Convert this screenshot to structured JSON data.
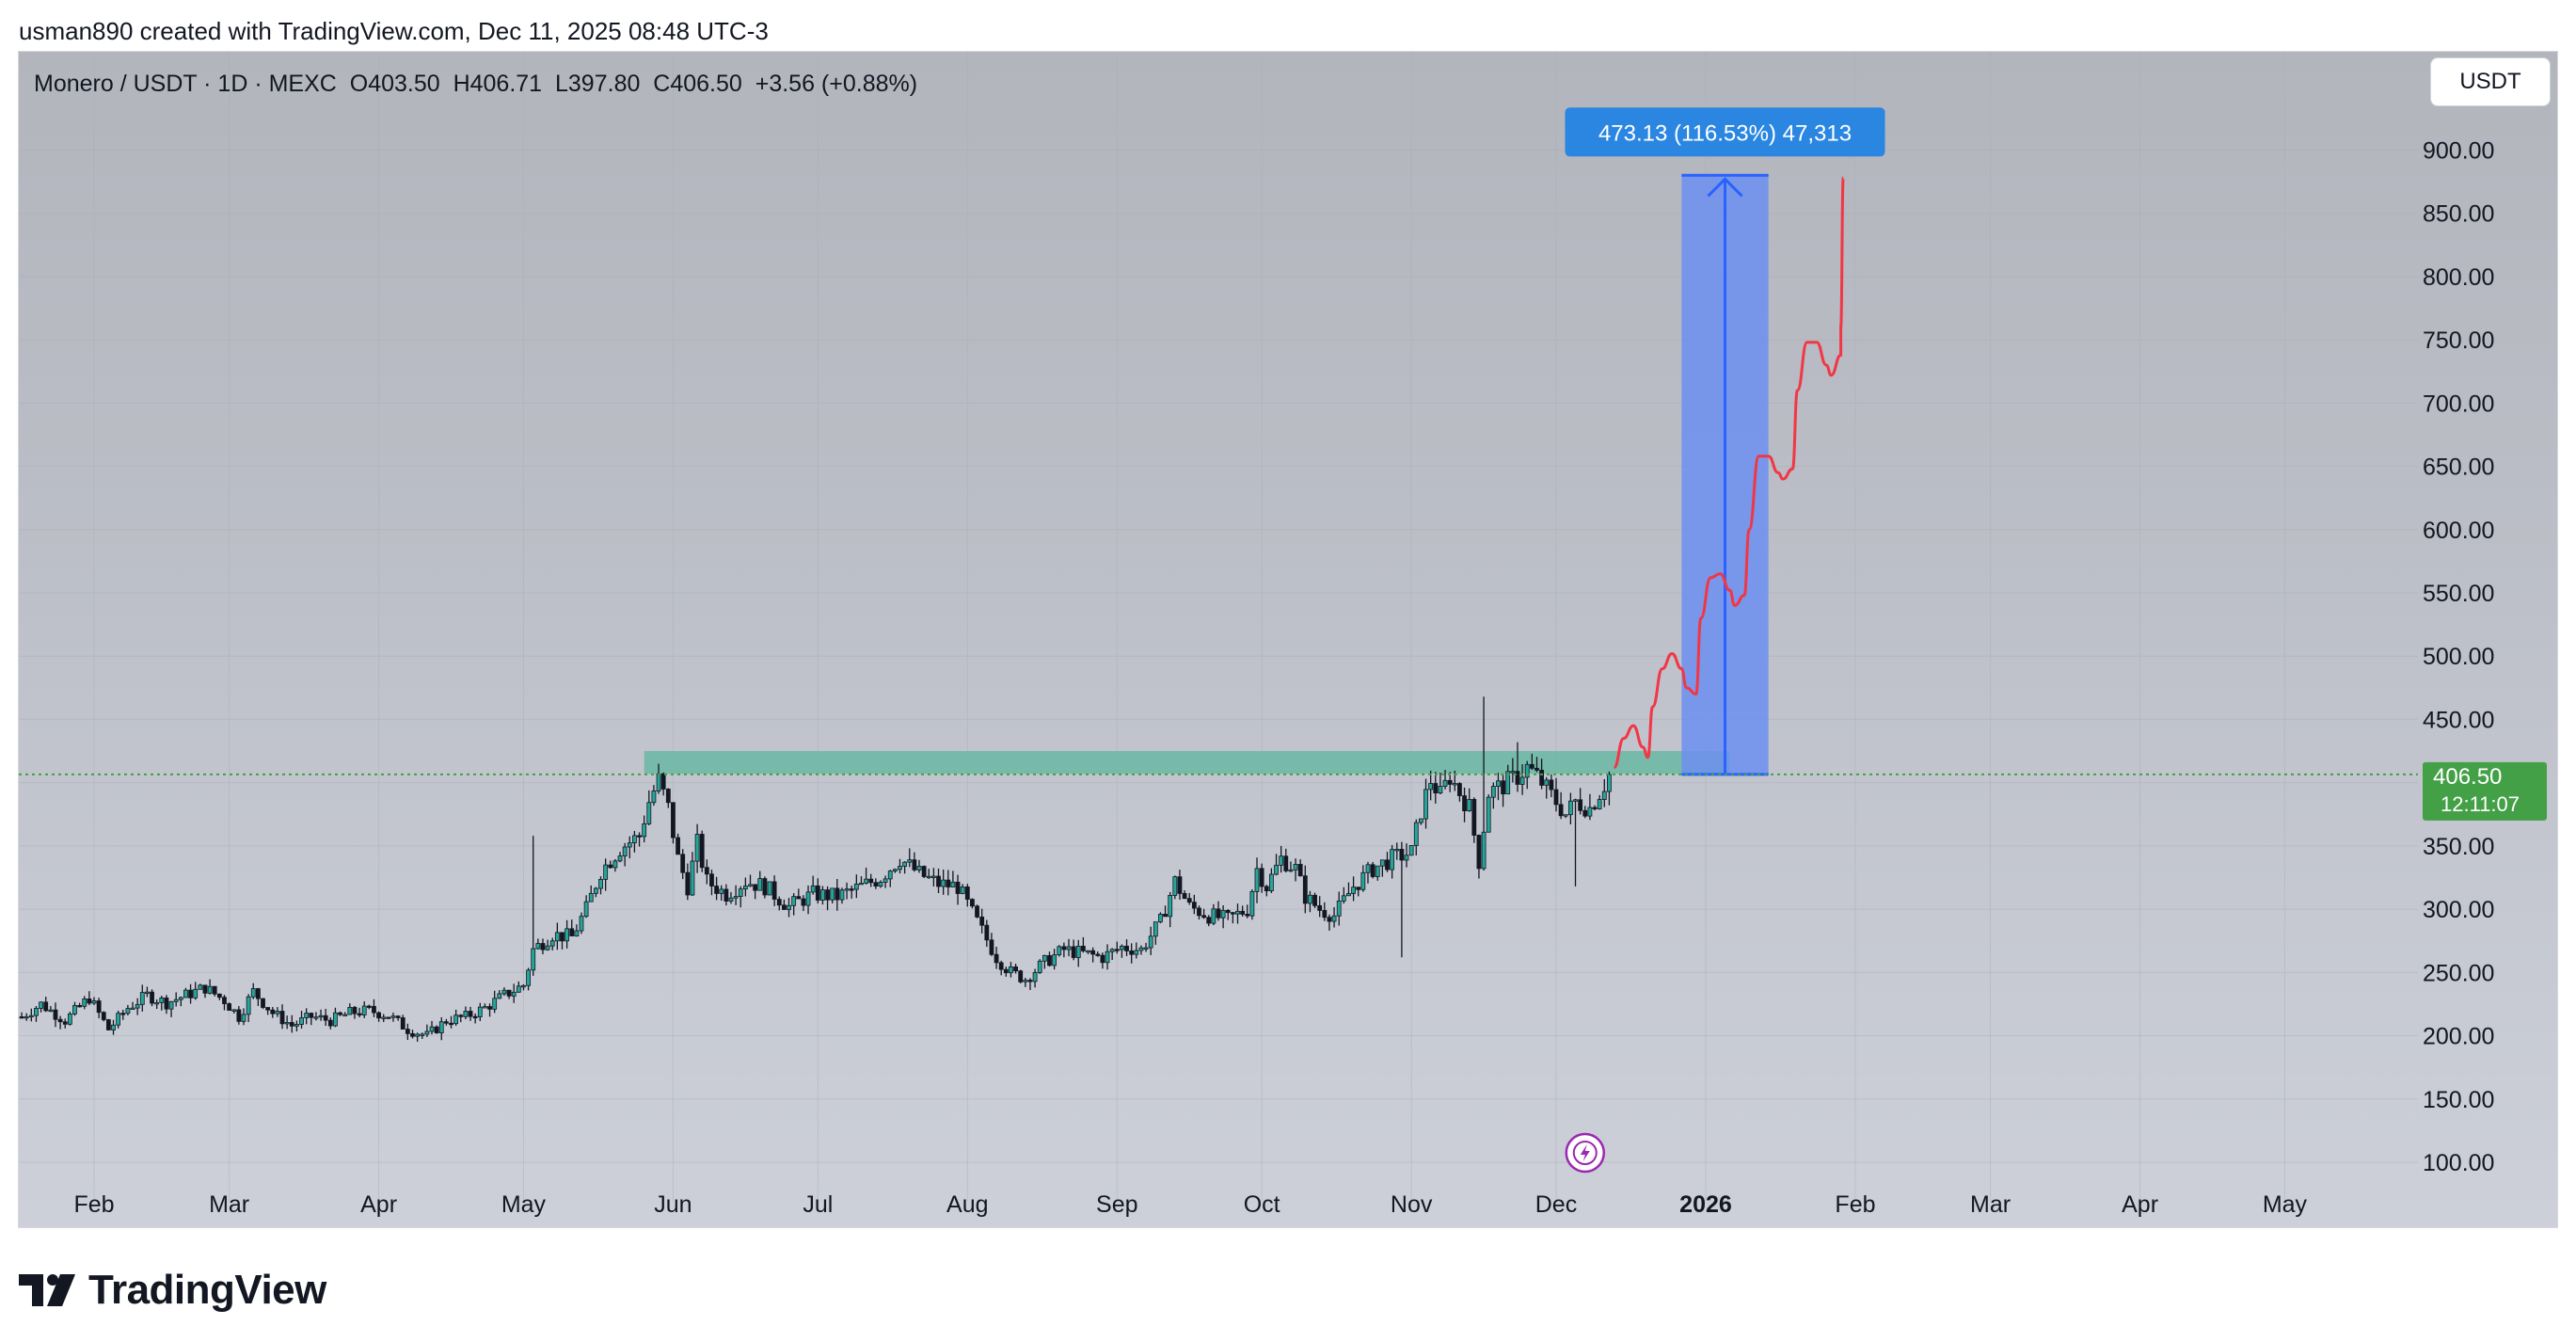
{
  "header": {
    "attribution": "usman890 created with TradingView.com, Dec 11, 2025 08:48 UTC-3"
  },
  "legend": {
    "symbol": "Monero / USDT · 1D · MEXC",
    "open_label": "O",
    "open": "403.50",
    "high_label": "H",
    "high": "406.71",
    "low_label": "L",
    "low": "397.80",
    "close_label": "C",
    "close": "406.50",
    "change": "+3.56 (+0.88%)"
  },
  "currency_button": "USDT",
  "price_label": {
    "price": "406.50",
    "countdown": "12:11:07"
  },
  "measure_label": "473.13 (116.53%) 47,313",
  "footer": {
    "brand": "TradingView"
  },
  "colors": {
    "up": "#26a69a",
    "price_badge": "#43a047",
    "measure_fill": "#6c8ff0",
    "measure_line": "#2962ff",
    "measure_label_bg": "#2a86e0",
    "zone": "#6fb8a6",
    "projection": "#f23645",
    "alert_icon": "#9c27b0"
  },
  "chart_data": {
    "type": "candlestick",
    "title": "Monero / USDT · 1D · MEXC",
    "ylim": [
      80,
      1000
    ],
    "yticks": [
      100,
      150,
      200,
      250,
      300,
      350,
      400,
      450,
      500,
      550,
      600,
      650,
      700,
      750,
      800,
      850,
      900
    ],
    "ytick_labels": [
      "100.00",
      "150.00",
      "200.00",
      "250.00",
      "300.00",
      "350.00",
      "400.00",
      "450.00",
      "500.00",
      "550.00",
      "600.00",
      "650.00",
      "700.00",
      "750.00",
      "800.00",
      "850.00",
      "900.00"
    ],
    "xticks": [
      {
        "label": "Feb",
        "day": 31
      },
      {
        "label": "Mar",
        "day": 59
      },
      {
        "label": "Apr",
        "day": 90
      },
      {
        "label": "May",
        "day": 120
      },
      {
        "label": "Jun",
        "day": 151
      },
      {
        "label": "Jul",
        "day": 181
      },
      {
        "label": "Aug",
        "day": 212
      },
      {
        "label": "Sep",
        "day": 243
      },
      {
        "label": "Oct",
        "day": 273
      },
      {
        "label": "Nov",
        "day": 304
      },
      {
        "label": "Dec",
        "day": 334
      },
      {
        "label": "2026",
        "day": 365,
        "bold": true
      },
      {
        "label": "Feb",
        "day": 396
      },
      {
        "label": "Mar",
        "day": 424
      },
      {
        "label": "Apr",
        "day": 455
      },
      {
        "label": "May",
        "day": 485
      }
    ],
    "price_path": [
      [
        16,
        215
      ],
      [
        20,
        225
      ],
      [
        25,
        212
      ],
      [
        30,
        230
      ],
      [
        34,
        205
      ],
      [
        38,
        222
      ],
      [
        42,
        232
      ],
      [
        46,
        226
      ],
      [
        50,
        232
      ],
      [
        54,
        238
      ],
      [
        58,
        228
      ],
      [
        61,
        215
      ],
      [
        64,
        235
      ],
      [
        68,
        218
      ],
      [
        72,
        208
      ],
      [
        76,
        215
      ],
      [
        80,
        212
      ],
      [
        84,
        218
      ],
      [
        88,
        220
      ],
      [
        92,
        216
      ],
      [
        96,
        205
      ],
      [
        100,
        200
      ],
      [
        104,
        212
      ],
      [
        108,
        215
      ],
      [
        112,
        222
      ],
      [
        116,
        232
      ],
      [
        120,
        240
      ],
      [
        122,
        268
      ],
      [
        126,
        280
      ],
      [
        130,
        278
      ],
      [
        133,
        300
      ],
      [
        136,
        330
      ],
      [
        140,
        348
      ],
      [
        144,
        358
      ],
      [
        146,
        385
      ],
      [
        148,
        402
      ],
      [
        150,
        380
      ],
      [
        152,
        340
      ],
      [
        154,
        318
      ],
      [
        156,
        352
      ],
      [
        158,
        322
      ],
      [
        162,
        312
      ],
      [
        166,
        322
      ],
      [
        170,
        318
      ],
      [
        175,
        302
      ],
      [
        180,
        312
      ],
      [
        185,
        310
      ],
      [
        190,
        318
      ],
      [
        194,
        325
      ],
      [
        198,
        340
      ],
      [
        202,
        328
      ],
      [
        206,
        320
      ],
      [
        210,
        318
      ],
      [
        214,
        290
      ],
      [
        218,
        262
      ],
      [
        221,
        250
      ],
      [
        224,
        245
      ],
      [
        228,
        258
      ],
      [
        232,
        268
      ],
      [
        236,
        265
      ],
      [
        240,
        262
      ],
      [
        244,
        270
      ],
      [
        248,
        268
      ],
      [
        252,
        290
      ],
      [
        255,
        322
      ],
      [
        258,
        302
      ],
      [
        262,
        295
      ],
      [
        266,
        292
      ],
      [
        270,
        300
      ],
      [
        272,
        332
      ],
      [
        274,
        318
      ],
      [
        277,
        340
      ],
      [
        280,
        332
      ],
      [
        282,
        310
      ],
      [
        285,
        300
      ],
      [
        288,
        295
      ],
      [
        292,
        318
      ],
      [
        296,
        332
      ],
      [
        300,
        340
      ],
      [
        304,
        345
      ],
      [
        306,
        378
      ],
      [
        308,
        402
      ],
      [
        310,
        390
      ],
      [
        312,
        405
      ],
      [
        314,
        392
      ],
      [
        316,
        380
      ],
      [
        318,
        338
      ],
      [
        320,
        392
      ],
      [
        323,
        398
      ],
      [
        326,
        405
      ],
      [
        328,
        412
      ],
      [
        330,
        405
      ],
      [
        332,
        395
      ],
      [
        334,
        385
      ],
      [
        336,
        375
      ],
      [
        338,
        385
      ],
      [
        341,
        380
      ],
      [
        343,
        392
      ],
      [
        345,
        405
      ]
    ],
    "resistance_zone": {
      "from_day": 145,
      "to_day": 370,
      "low": 407,
      "high": 425
    },
    "measure": {
      "from_day": 360,
      "to_day": 378,
      "low": 406.5,
      "high": 880,
      "label": "473.13 (116.53%) 47,313"
    },
    "projection": [
      [
        346,
        412
      ],
      [
        348,
        435
      ],
      [
        350,
        445
      ],
      [
        352,
        428
      ],
      [
        353,
        420
      ],
      [
        354,
        460
      ],
      [
        356,
        490
      ],
      [
        358,
        502
      ],
      [
        360,
        490
      ],
      [
        361,
        475
      ],
      [
        363,
        470
      ],
      [
        364,
        530
      ],
      [
        366,
        562
      ],
      [
        368,
        565
      ],
      [
        370,
        552
      ],
      [
        371,
        540
      ],
      [
        373,
        548
      ],
      [
        374,
        600
      ],
      [
        376,
        658
      ],
      [
        378,
        658
      ],
      [
        380,
        645
      ],
      [
        381,
        640
      ],
      [
        383,
        648
      ],
      [
        384,
        710
      ],
      [
        386,
        748
      ],
      [
        388,
        748
      ],
      [
        390,
        730
      ],
      [
        391,
        722
      ],
      [
        393,
        738
      ],
      [
        393,
        760
      ],
      [
        393.5,
        878
      ]
    ],
    "last_price": 406.5
  }
}
